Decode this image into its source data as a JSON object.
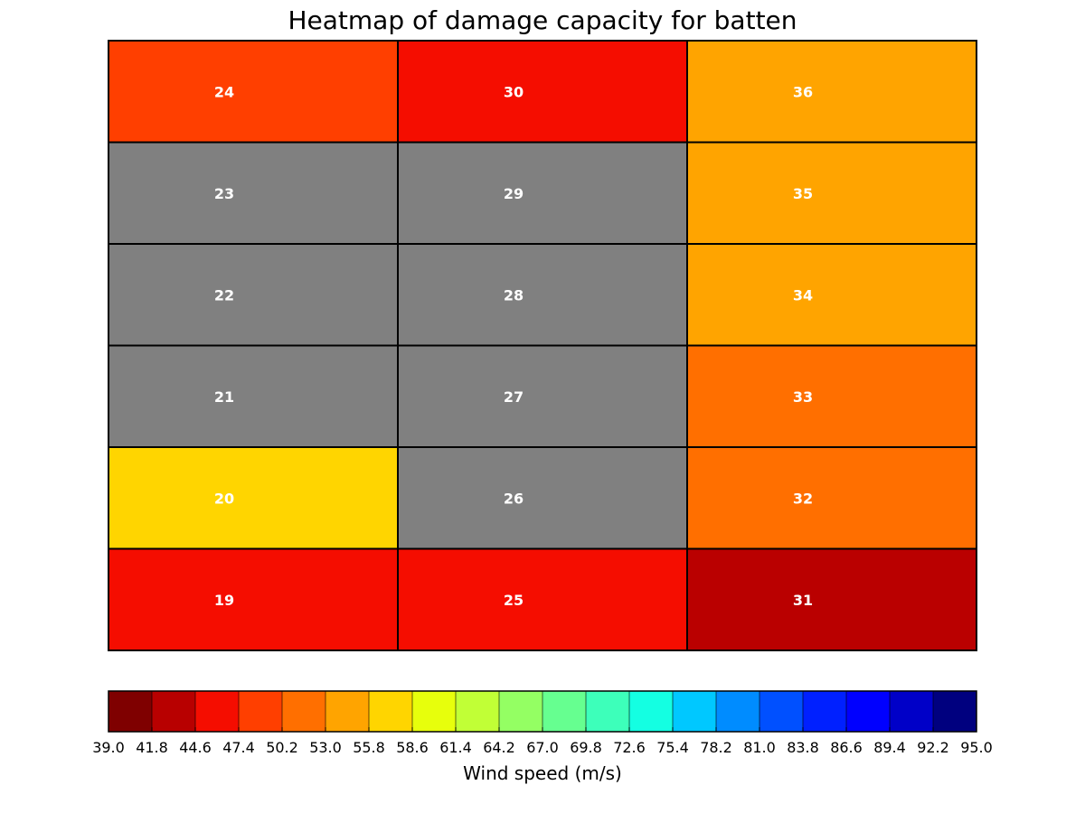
{
  "chart_data": {
    "type": "heatmap",
    "title": "Heatmap of damage capacity for batten",
    "columns": 3,
    "rows": 6,
    "cells": [
      {
        "id": "24",
        "row": 0,
        "col": 0,
        "color": "#ff3f00"
      },
      {
        "id": "30",
        "row": 0,
        "col": 1,
        "color": "#f50d00"
      },
      {
        "id": "36",
        "row": 0,
        "col": 2,
        "color": "#ffa400"
      },
      {
        "id": "23",
        "row": 1,
        "col": 0,
        "color": "#808080"
      },
      {
        "id": "29",
        "row": 1,
        "col": 1,
        "color": "#808080"
      },
      {
        "id": "35",
        "row": 1,
        "col": 2,
        "color": "#ffa400"
      },
      {
        "id": "22",
        "row": 2,
        "col": 0,
        "color": "#808080"
      },
      {
        "id": "28",
        "row": 2,
        "col": 1,
        "color": "#808080"
      },
      {
        "id": "34",
        "row": 2,
        "col": 2,
        "color": "#ffa400"
      },
      {
        "id": "21",
        "row": 3,
        "col": 0,
        "color": "#808080"
      },
      {
        "id": "27",
        "row": 3,
        "col": 1,
        "color": "#808080"
      },
      {
        "id": "33",
        "row": 3,
        "col": 2,
        "color": "#ff6f00"
      },
      {
        "id": "20",
        "row": 4,
        "col": 0,
        "color": "#ffd500"
      },
      {
        "id": "26",
        "row": 4,
        "col": 1,
        "color": "#808080"
      },
      {
        "id": "32",
        "row": 4,
        "col": 2,
        "color": "#ff6f00"
      },
      {
        "id": "19",
        "row": 5,
        "col": 0,
        "color": "#f50d00"
      },
      {
        "id": "25",
        "row": 5,
        "col": 1,
        "color": "#f50d00"
      },
      {
        "id": "31",
        "row": 5,
        "col": 2,
        "color": "#ba0000"
      }
    ],
    "colorbar": {
      "label": "Wind speed (m/s)",
      "orientation": "horizontal",
      "ticks": [
        "39.0",
        "41.8",
        "44.6",
        "47.4",
        "50.2",
        "53.0",
        "55.8",
        "58.6",
        "61.4",
        "64.2",
        "67.0",
        "69.8",
        "72.6",
        "75.4",
        "78.2",
        "81.0",
        "83.8",
        "86.6",
        "89.4",
        "92.2",
        "95.0"
      ],
      "colors": [
        "#7f0000",
        "#b80000",
        "#f50d00",
        "#ff3f00",
        "#ff6f00",
        "#ffa400",
        "#ffd500",
        "#e7ff0c",
        "#c1ff36",
        "#94ff63",
        "#66ff90",
        "#3dffba",
        "#14ffe2",
        "#00c8ff",
        "#008cff",
        "#0050ff",
        "#0020ff",
        "#0000ff",
        "#0000c8",
        "#00007f"
      ]
    }
  }
}
